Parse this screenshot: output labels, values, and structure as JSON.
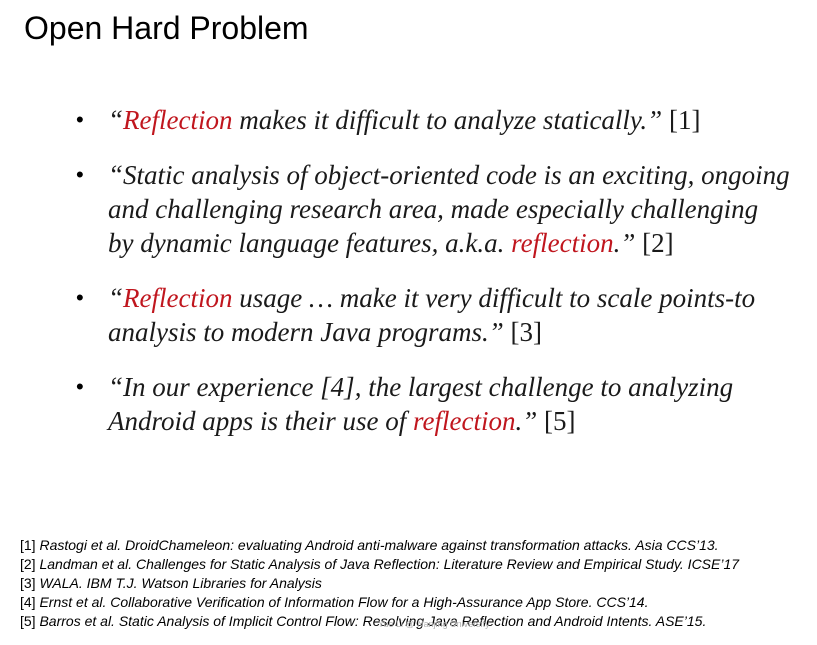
{
  "slide": {
    "title": "Open Hard Problem",
    "quotes": [
      {
        "lines": [
          [
            {
              "text": "“",
              "style": "it"
            },
            {
              "text": "Reflection",
              "style": "it red"
            },
            {
              "text": " makes it difficult to analyze statically.”",
              "style": "it"
            },
            {
              "text": " [1]",
              "style": "ref"
            }
          ]
        ]
      },
      {
        "lines": [
          [
            {
              "text": "“Static analysis of object-oriented code is an exciting, ongoing",
              "style": "it"
            }
          ],
          [
            {
              "text": "and challenging research area, made especially challenging",
              "style": "it"
            }
          ],
          [
            {
              "text": "by dynamic language features, a.k.a. ",
              "style": "it"
            },
            {
              "text": "reflection",
              "style": "it red"
            },
            {
              "text": ".”",
              "style": "it"
            },
            {
              "text": " [2]",
              "style": "ref"
            }
          ]
        ]
      },
      {
        "lines": [
          [
            {
              "text": "“",
              "style": "it"
            },
            {
              "text": "Reflection",
              "style": "it red"
            },
            {
              "text": " usage … make it very difficult to scale points-to",
              "style": "it"
            }
          ],
          [
            {
              "text": "analysis to modern Java programs.”",
              "style": "it"
            },
            {
              "text": " [3]",
              "style": "ref"
            }
          ]
        ]
      },
      {
        "lines": [
          [
            {
              "text": "“In our experience [4], the largest challenge to analyzing",
              "style": "it"
            }
          ],
          [
            {
              "text": "Android apps is their use of ",
              "style": "it"
            },
            {
              "text": "reflection",
              "style": "it red"
            },
            {
              "text": ".”",
              "style": "it"
            },
            {
              "text": " [5]",
              "style": "ref"
            }
          ]
        ]
      }
    ],
    "references": [
      {
        "num": "[1]",
        "text": "Rastogi et al. DroidChameleon: evaluating Android anti-malware against transformation attacks. Asia CCS’13."
      },
      {
        "num": "[2]",
        "text": "Landman et al. Challenges for Static Analysis of Java Reflection: Literature Review and Empirical Study. ICSE’17"
      },
      {
        "num": "[3]",
        "text": "WALA. IBM T.J. Watson Libraries for Analysis"
      },
      {
        "num": "[4]",
        "text": "Ernst et al. Collaborative Verification of Information Flow for a High-Assurance App Store. CCS’14."
      },
      {
        "num": "[5]",
        "text": "Barros et al. Static Analysis of Implicit Control Flow: Resolving Java Reflection and Android Intents. ASE’15."
      }
    ],
    "watermark": "Yue Li @ Nanjing University"
  }
}
